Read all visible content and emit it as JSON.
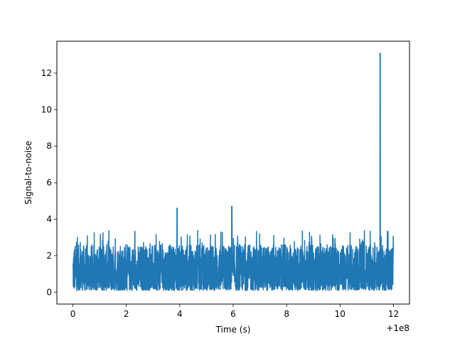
{
  "chart_data": {
    "type": "line",
    "xlabel": "Time (s)",
    "ylabel": "Signal-to-noise",
    "x_offset_label": "+1e8",
    "xlim": [
      -0.6,
      12.6
    ],
    "ylim": [
      -0.65,
      13.75
    ],
    "x_ticks": [
      0,
      2,
      4,
      6,
      8,
      10,
      12
    ],
    "y_ticks": [
      0,
      2,
      4,
      6,
      8,
      10,
      12
    ],
    "grid": false,
    "series": [
      {
        "color": "#1f77b4",
        "noise_band": [
          0.1,
          3.3
        ],
        "x_range": [
          0,
          12
        ],
        "peaks": [
          {
            "x": 3.9,
            "y": 4.6
          },
          {
            "x": 5.95,
            "y": 4.7
          },
          {
            "x": 11.5,
            "y": 13.1
          }
        ]
      }
    ]
  }
}
